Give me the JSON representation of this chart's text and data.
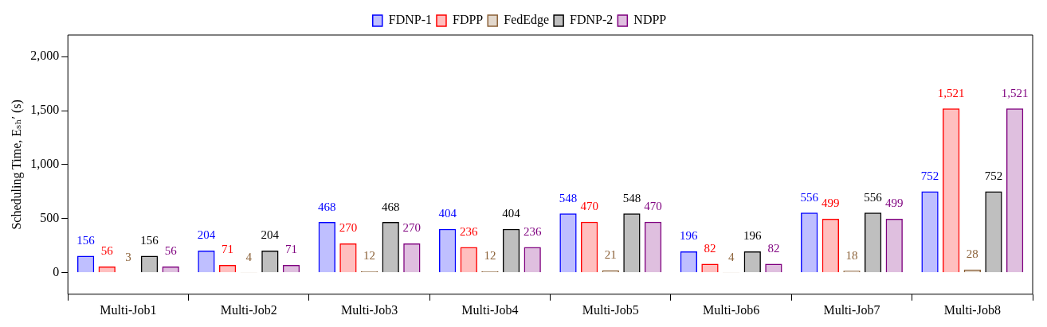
{
  "chart_data": {
    "type": "bar",
    "ylabel": "Scheduling Time, Eₛₕ′ (s)",
    "categories": [
      "Multi-Job1",
      "Multi-Job2",
      "Multi-Job3",
      "Multi-Job4",
      "Multi-Job5",
      "Multi-Job6",
      "Multi-Job7",
      "Multi-Job8"
    ],
    "series": [
      {
        "name": "FDNP-1",
        "color": "#0000ff",
        "values": [
          156,
          204,
          468,
          404,
          548,
          196,
          556,
          752
        ],
        "value_labels": [
          "156",
          "204",
          "468",
          "404",
          "548",
          "196",
          "556",
          "752"
        ]
      },
      {
        "name": "FDPP",
        "color": "#ff0000",
        "values": [
          56,
          71,
          270,
          236,
          470,
          82,
          499,
          1521
        ],
        "value_labels": [
          "56",
          "71",
          "270",
          "236",
          "470",
          "82",
          "499",
          "1,521"
        ]
      },
      {
        "name": "FedEdge",
        "color": "#8c6239",
        "values": [
          3,
          4,
          12,
          12,
          21,
          4,
          18,
          28
        ],
        "value_labels": [
          "3",
          "4",
          "12",
          "12",
          "21",
          "4",
          "18",
          "28"
        ]
      },
      {
        "name": "FDNP-2",
        "color": "#000000",
        "values": [
          156,
          204,
          468,
          404,
          548,
          196,
          556,
          752
        ],
        "value_labels": [
          "156",
          "204",
          "468",
          "404",
          "548",
          "196",
          "556",
          "752"
        ]
      },
      {
        "name": "NDPP",
        "color": "#7f007f",
        "values": [
          56,
          71,
          270,
          236,
          470,
          82,
          499,
          1521
        ],
        "value_labels": [
          "56",
          "71",
          "270",
          "236",
          "470",
          "82",
          "499",
          "1,521"
        ]
      }
    ],
    "ylim": [
      -200,
      2200
    ],
    "yticks": [
      0,
      500,
      {
        "value": 1000,
        "label": "1,000"
      },
      {
        "value": 1500,
        "label": "1,500"
      },
      {
        "value": 2000,
        "label": "2,000"
      }
    ],
    "grid": false,
    "legend": "top"
  }
}
